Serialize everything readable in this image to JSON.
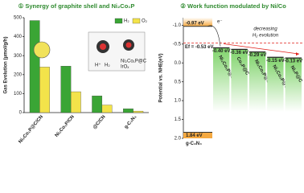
{
  "chart_data": [
    {
      "type": "bar",
      "title": "① Synergy of graphite shell and Ni₂Co₁P",
      "ylabel": "Gas Evolution (μmol/g/h)",
      "categories": [
        "Ni₂Co₁P@C/CN",
        "Ni₂Co₁P/CN",
        "@C/CN",
        "g-C₃N₄"
      ],
      "series": [
        {
          "name": "H₂",
          "color": "#3aa535",
          "values": [
            485,
            245,
            88,
            20
          ]
        },
        {
          "name": "O₂",
          "color": "#f3e34a",
          "values": [
            240,
            110,
            40,
            8
          ]
        }
      ],
      "ylim": [
        0,
        500
      ],
      "yticks": [
        0,
        100,
        200,
        300,
        400,
        500
      ],
      "legend": "upper-right",
      "inset_labels": [
        "Ni₂Co₁P@C",
        "IrOₓ",
        "H⁺",
        "H₂"
      ]
    },
    {
      "type": "level",
      "title": "② Work function modulated by Ni/Co",
      "ylabel": "Potential vs. NHE(eV)",
      "ylim": [
        -1.2,
        2.0
      ],
      "inverted": true,
      "yticks": [
        {
          "value": -1,
          "label": "-1.0"
        },
        -0.5,
        {
          "value": 0,
          "label": "0.0"
        },
        0.5,
        {
          "value": 1,
          "label": "1.0"
        },
        1.5,
        {
          "value": 2,
          "label": "2.0"
        }
      ],
      "semiconductor": {
        "name": "g-C₃N₄",
        "cb": -0.97,
        "cb_label": "-0.97 eV",
        "vb": 1.84,
        "vb_label": "1.84 eV",
        "color": "#f5a940"
      },
      "fermi": {
        "value": -0.53,
        "label": "Ef = -0.53 eV",
        "color": "#e0201b"
      },
      "categories": [
        "Ni₂Co₁P@C",
        "Co₂P@C",
        "Ni₁Co₁P@C",
        "Ni₁Co₂P@C",
        "Ni₂P@C"
      ],
      "values": [
        -0.4,
        -0.36,
        -0.29,
        -0.15,
        -0.13
      ],
      "value_labels": [
        "-0.40 eV",
        "-0.36 eV",
        "-0.29 eV",
        "-0.15 eV",
        "-0.13 eV"
      ],
      "color": "#7fd36a",
      "annotations": [
        "e⁻",
        "decreasing",
        "H₂ evolution"
      ]
    }
  ]
}
